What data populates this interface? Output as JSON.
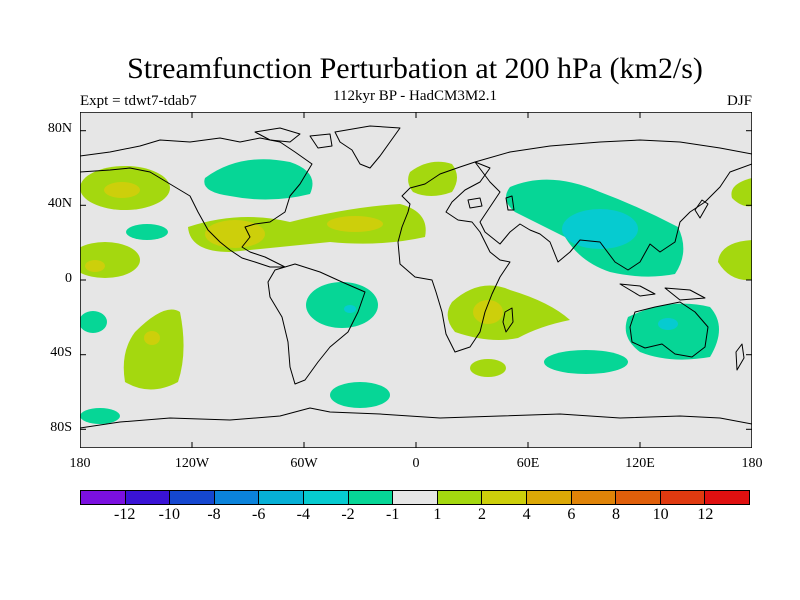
{
  "title": "Streamfunction Perturbation at 200 hPa (km2/s)",
  "subtitle": "112kyr BP - HadCM3M2.1",
  "experiment": "Expt = tdwt7-tdab7",
  "season": "DJF",
  "map": {
    "background_color": "#e6e6e6",
    "lat_labels": [
      "80N",
      "40N",
      "0",
      "40S",
      "80S"
    ],
    "lon_labels": [
      "180",
      "120W",
      "60W",
      "0",
      "60E",
      "120E",
      "180"
    ]
  },
  "colorbar": {
    "colors": [
      "#7b10e0",
      "#3a13d6",
      "#1547d0",
      "#0b83db",
      "#06b0d6",
      "#06cbd0",
      "#06d696",
      "#e6e6e6",
      "#a4d80f",
      "#cdcf0b",
      "#dca806",
      "#e08408",
      "#e05f0a",
      "#e03a10",
      "#e01010"
    ],
    "labels": [
      "-12",
      "-10",
      "-8",
      "-6",
      "-4",
      "-2",
      "-1",
      "1",
      "2",
      "4",
      "6",
      "8",
      "10",
      "12"
    ]
  }
}
